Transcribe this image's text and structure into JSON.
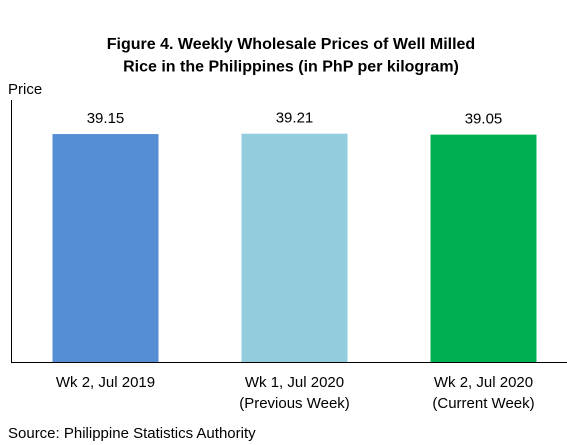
{
  "chart_data": {
    "type": "bar",
    "title": "Figure 4. Weekly Wholesale Prices of Well Milled\nRice in the Philippines (in PhP per kilogram)",
    "y_label": "Price",
    "categories": [
      "Wk 2, Jul 2019",
      "Wk 1, Jul 2020\n(Previous Week)",
      "Wk 2, Jul 2020\n(Current Week)"
    ],
    "values": [
      39.15,
      39.21,
      39.05
    ],
    "colors": [
      "#558ed5",
      "#93cddd",
      "#00b050"
    ],
    "ylim": [
      0,
      45
    ],
    "source": "Source: Philippine Statistics Authority"
  }
}
